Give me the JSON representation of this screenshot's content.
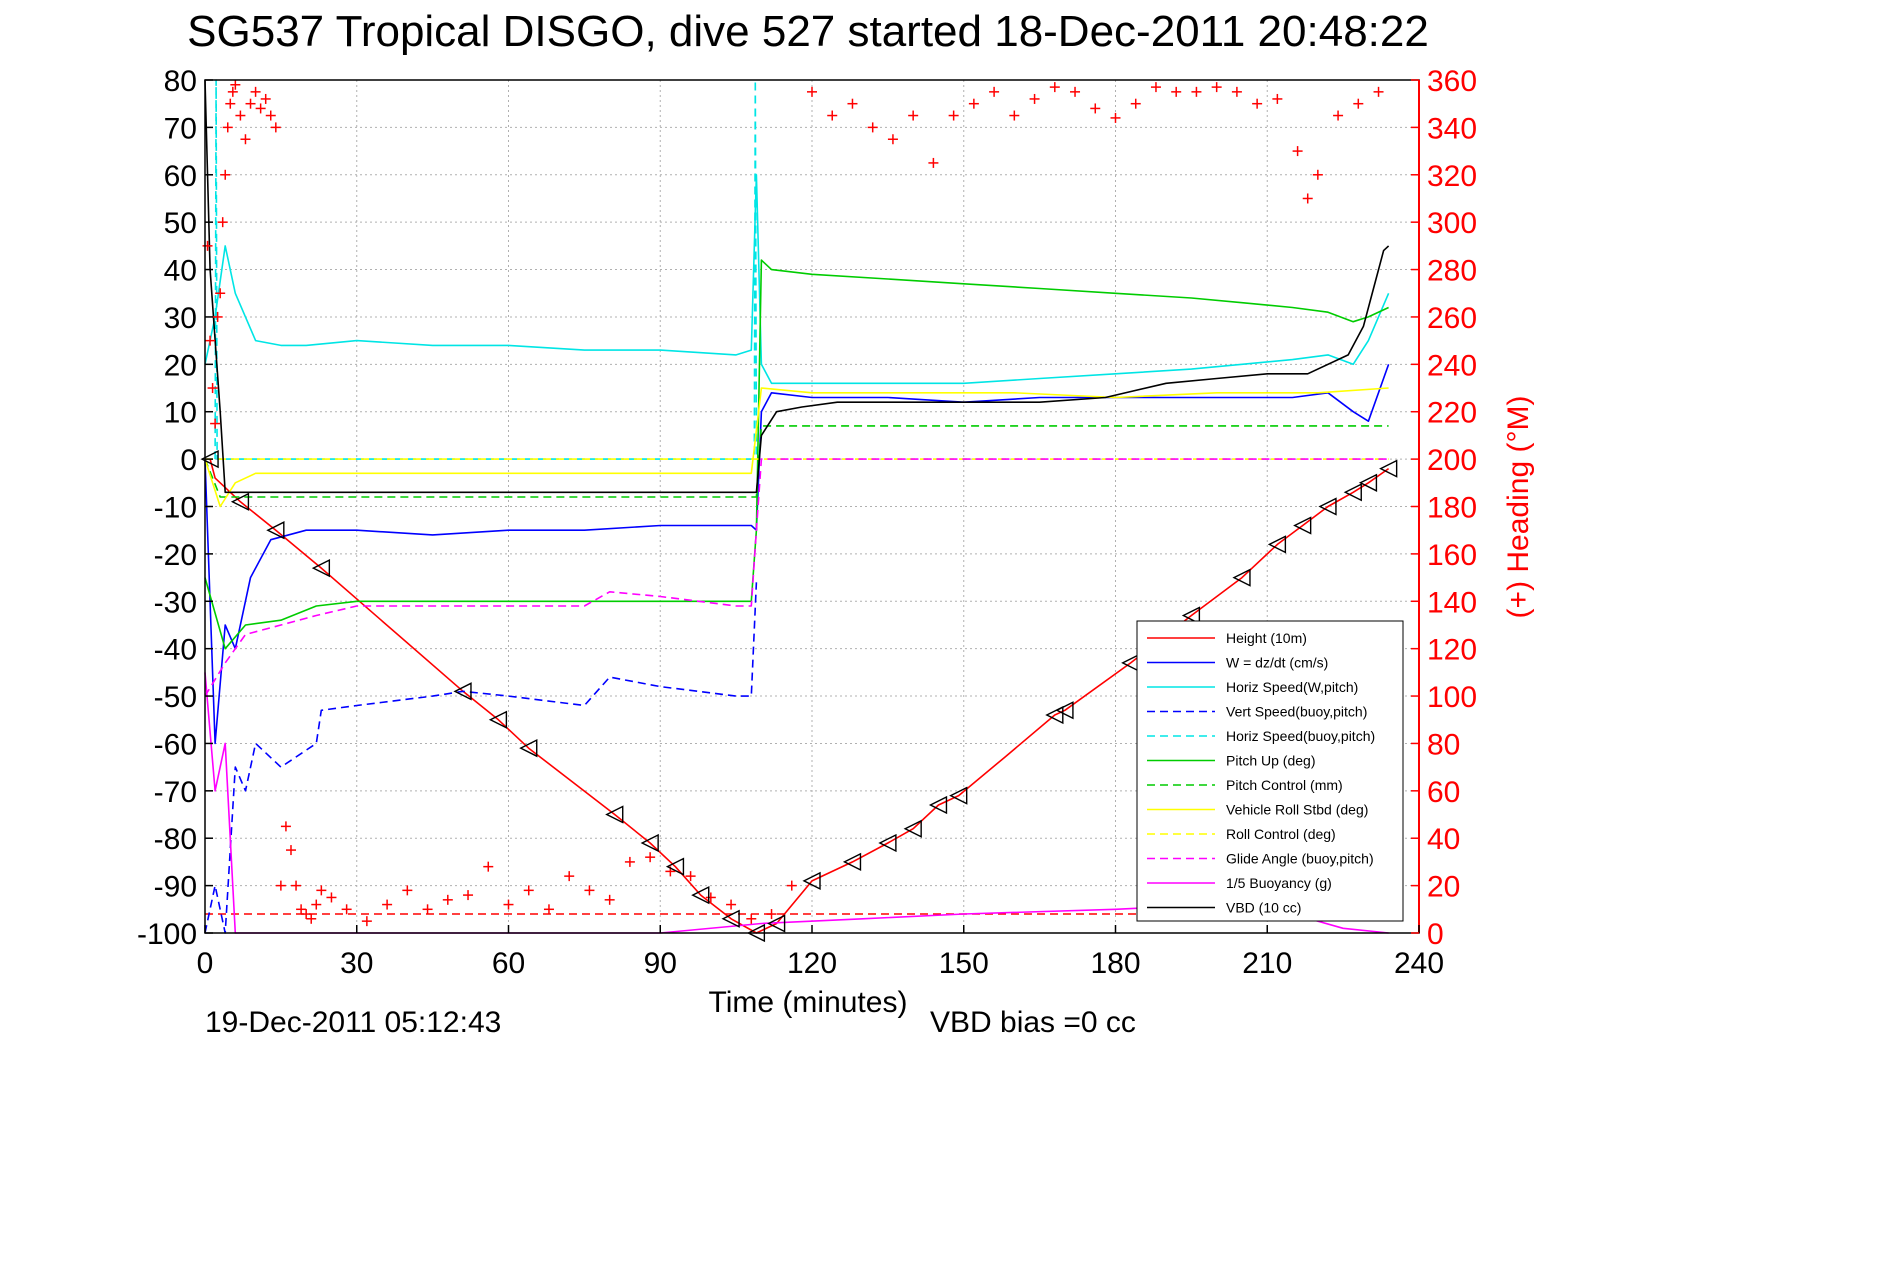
{
  "chart_data": {
    "type": "line",
    "title": "SG537 Tropical DISGO, dive 527 started 18-Dec-2011 20:48:22",
    "xlabel": "Time (minutes)",
    "ylabel": "",
    "y2label": "(+) Heading (°M)",
    "xlim": [
      0,
      240
    ],
    "ylim": [
      -100,
      80
    ],
    "y2lim": [
      0,
      360
    ],
    "xticks": [
      "0",
      "30",
      "60",
      "90",
      "120",
      "150",
      "180",
      "210",
      "240"
    ],
    "yticks": [
      "80",
      "70",
      "60",
      "50",
      "40",
      "30",
      "20",
      "10",
      "0",
      "-10",
      "-20",
      "-30",
      "-40",
      "-50",
      "-60",
      "-70",
      "-80",
      "-90",
      "-100"
    ],
    "y2ticks": [
      "360",
      "340",
      "320",
      "300",
      "280",
      "260",
      "240",
      "220",
      "200",
      "180",
      "160",
      "140",
      "120",
      "100",
      "80",
      "60",
      "40",
      "20",
      "0"
    ],
    "grid": true,
    "legend_position": "lower-right",
    "footer_left": "19-Dec-2011 05:12:43",
    "footer_right": "VBD bias =0 cc",
    "colors": {
      "height": "#ff0000",
      "w": "#0000ff",
      "horiz_speed_w": "#00e5e5",
      "vert_speed_buoy": "#0000ff",
      "horiz_speed_buoy": "#00e5e5",
      "pitch_up": "#00cc00",
      "pitch_control": "#00cc00",
      "roll": "#ffff00",
      "roll_control": "#ffff00",
      "glide": "#ff00ff",
      "buoyancy": "#ff00ff",
      "vbd": "#000000",
      "heading": "#ff0000",
      "right_axis": "#ff0000"
    },
    "series": [
      {
        "name": "Height (10m)",
        "style": "solid",
        "color_key": "height",
        "x": [
          1,
          2,
          7,
          14,
          23,
          51,
          58,
          64,
          81,
          88,
          93,
          98,
          104,
          109,
          113,
          120,
          128,
          135,
          140,
          145,
          149,
          158,
          168,
          170,
          183,
          195,
          205,
          212,
          217,
          222,
          227,
          230,
          234
        ],
        "y": [
          0,
          -4,
          -9,
          -15,
          -23,
          -49,
          -55,
          -61,
          -75,
          -81,
          -86,
          -92,
          -97,
          -100,
          -98,
          -89,
          -85,
          -81,
          -78,
          -73,
          -71,
          -63,
          -54,
          -53,
          -43,
          -33,
          -25,
          -18,
          -14,
          -10,
          -7,
          -5,
          -2
        ]
      },
      {
        "name": "W = dz/dt (cm/s)",
        "style": "solid",
        "color_key": "w",
        "x": [
          0,
          2,
          4,
          6,
          9,
          13,
          20,
          30,
          45,
          60,
          75,
          90,
          105,
          108,
          109,
          110,
          112,
          120,
          135,
          150,
          165,
          180,
          195,
          205,
          215,
          222,
          227,
          230,
          234
        ],
        "y": [
          0,
          -60,
          -35,
          -40,
          -25,
          -17,
          -15,
          -15,
          -16,
          -15,
          -15,
          -14,
          -14,
          -14,
          -15,
          10,
          14,
          13,
          13,
          12,
          13,
          13,
          13,
          13,
          13,
          14,
          10,
          8,
          20
        ]
      },
      {
        "name": "Horiz Speed(W,pitch)",
        "style": "solid",
        "color_key": "horiz_speed_w",
        "x": [
          0,
          2,
          4,
          6,
          10,
          15,
          20,
          30,
          45,
          60,
          75,
          90,
          105,
          108,
          109,
          110,
          112,
          120,
          135,
          150,
          165,
          180,
          195,
          205,
          215,
          222,
          227,
          230,
          234
        ],
        "y": [
          20,
          30,
          45,
          35,
          25,
          24,
          24,
          25,
          24,
          24,
          23,
          23,
          22,
          23,
          60,
          20,
          16,
          16,
          16,
          16,
          17,
          18,
          19,
          20,
          21,
          22,
          20,
          25,
          35
        ]
      },
      {
        "name": "Vert Speed(buoy,pitch)",
        "style": "dashed",
        "color_key": "vert_speed_buoy",
        "x": [
          0,
          2,
          4,
          6,
          8,
          10,
          15,
          22,
          23,
          30,
          45,
          51,
          60,
          75,
          80,
          90,
          105,
          108,
          109
        ],
        "y": [
          -100,
          -90,
          -100,
          -65,
          -70,
          -60,
          -65,
          -60,
          -53,
          -52,
          -50,
          -49,
          -50,
          -52,
          -46,
          -48,
          -50,
          -50,
          -26
        ]
      },
      {
        "name": "Horiz Speed(buoy,pitch)",
        "style": "dashed",
        "color_key": "horiz_speed_buoy",
        "x": [
          2,
          2.2,
          2.4,
          108.6,
          108.8,
          109
        ],
        "y": [
          0,
          80,
          0,
          0,
          80,
          0
        ]
      },
      {
        "name": "Pitch Up (deg)",
        "style": "solid",
        "color_key": "pitch_up",
        "x": [
          0,
          4,
          8,
          15,
          22,
          30,
          45,
          60,
          75,
          90,
          105,
          108,
          109,
          110,
          112,
          120,
          135,
          150,
          165,
          180,
          195,
          205,
          215,
          222,
          227,
          230,
          234
        ],
        "y": [
          -25,
          -40,
          -35,
          -34,
          -31,
          -30,
          -30,
          -30,
          -30,
          -30,
          -30,
          -30,
          -15,
          42,
          40,
          39,
          38,
          37,
          36,
          35,
          34,
          33,
          32,
          31,
          29,
          30,
          32
        ]
      },
      {
        "name": "Pitch Control (mm)",
        "style": "dashed",
        "color_key": "pitch_control",
        "x": [
          0,
          3,
          10,
          20,
          40,
          60,
          80,
          100,
          108,
          109,
          110,
          130,
          160,
          190,
          210,
          230,
          234
        ],
        "y": [
          0,
          -8,
          -8,
          -8,
          -8,
          -8,
          -8,
          -8,
          -8,
          -8,
          7,
          7,
          7,
          7,
          7,
          7,
          7
        ]
      },
      {
        "name": "Vehicle Roll Stbd (deg)",
        "style": "solid",
        "color_key": "roll",
        "x": [
          0,
          3,
          6,
          10,
          20,
          30,
          45,
          60,
          75,
          90,
          105,
          108,
          110,
          120,
          140,
          160,
          180,
          200,
          220,
          234
        ],
        "y": [
          0,
          -10,
          -5,
          -3,
          -3,
          -3,
          -3,
          -3,
          -3,
          -3,
          -3,
          -3,
          15,
          14,
          14,
          14,
          13,
          14,
          14,
          15
        ]
      },
      {
        "name": "Roll Control (deg)",
        "style": "dashed",
        "color_key": "roll_control",
        "x": [
          0,
          3,
          10,
          30,
          60,
          90,
          108,
          110,
          140,
          170,
          200,
          230,
          234
        ],
        "y": [
          0,
          0,
          0,
          0,
          0,
          0,
          0,
          0,
          0,
          0,
          0,
          0,
          0
        ]
      },
      {
        "name": "Glide Angle (buoy,pitch)",
        "style": "dashed",
        "color_key": "glide",
        "x": [
          0,
          4,
          8,
          15,
          22,
          30,
          45,
          60,
          75,
          80,
          90,
          105,
          108,
          109,
          110,
          140,
          170,
          200,
          234
        ],
        "y": [
          -50,
          -43,
          -37,
          -35,
          -33,
          -31,
          -31,
          -31,
          -31,
          -28,
          -29,
          -31,
          -31,
          -15,
          0,
          0,
          0,
          0,
          0
        ]
      },
      {
        "name": "1/5 Buoyancy (g)",
        "style": "solid",
        "color_key": "buoyancy",
        "x": [
          0,
          2,
          4,
          6,
          10,
          30,
          60,
          90,
          110,
          130,
          150,
          180,
          200,
          215,
          225,
          234
        ],
        "y": [
          -45,
          -70,
          -60,
          -100,
          -100,
          -100,
          -100,
          -100,
          -98,
          -97,
          -96,
          -95,
          -94,
          -96,
          -99,
          -100
        ]
      },
      {
        "name": "VBD (10 cc)",
        "style": "solid",
        "color_key": "vbd",
        "x": [
          0,
          1,
          3,
          4,
          30,
          60,
          90,
          108,
          109,
          110,
          113,
          118,
          125,
          140,
          165,
          178,
          190,
          200,
          210,
          218,
          226,
          229,
          231,
          233,
          234
        ],
        "y": [
          80,
          40,
          10,
          -7,
          -7,
          -7,
          -7,
          -7,
          -7,
          5,
          10,
          11,
          12,
          12,
          12,
          13,
          16,
          17,
          18,
          18,
          22,
          28,
          36,
          44,
          45
        ]
      }
    ],
    "heading_series": {
      "name": "Heading",
      "marker": "+",
      "axis": "right",
      "color_key": "heading",
      "x": [
        0.5,
        1,
        1.5,
        2,
        2.5,
        3,
        3.5,
        4,
        4.5,
        5,
        5.5,
        6,
        7,
        8,
        9,
        10,
        11,
        12,
        13,
        14,
        15,
        16,
        17,
        18,
        19,
        20,
        21,
        22,
        23,
        25,
        28,
        32,
        36,
        40,
        44,
        48,
        52,
        56,
        60,
        64,
        68,
        72,
        76,
        80,
        84,
        88,
        92,
        96,
        100,
        104,
        108,
        112,
        116,
        120,
        124,
        128,
        132,
        136,
        140,
        144,
        148,
        152,
        156,
        160,
        164,
        168,
        172,
        176,
        180,
        184,
        188,
        192,
        196,
        200,
        204,
        208,
        212,
        216,
        218,
        220,
        224,
        228,
        232
      ],
      "y": [
        290,
        250,
        230,
        215,
        260,
        270,
        300,
        320,
        340,
        350,
        355,
        358,
        345,
        335,
        350,
        355,
        348,
        352,
        345,
        340,
        20,
        45,
        35,
        20,
        10,
        8,
        6,
        12,
        18,
        15,
        10,
        5,
        12,
        18,
        10,
        14,
        16,
        28,
        12,
        18,
        10,
        24,
        18,
        14,
        30,
        32,
        26,
        24,
        15,
        12,
        6,
        8,
        20,
        355,
        345,
        350,
        340,
        335,
        345,
        325,
        345,
        350,
        355,
        345,
        352,
        357,
        355,
        348,
        344,
        350,
        357,
        355,
        355,
        357,
        355,
        350,
        352,
        330,
        310,
        320,
        345,
        350,
        355
      ],
      "legend": false
    },
    "dashed_reference": {
      "y": -96,
      "color_key": "height"
    },
    "triangle_markers": {
      "x": [
        1,
        7,
        14,
        23,
        51,
        58,
        64,
        81,
        88,
        93,
        98,
        104,
        109,
        113,
        120,
        128,
        135,
        140,
        145,
        149,
        168,
        170,
        183,
        195,
        205,
        212,
        217,
        222,
        227,
        230,
        234
      ],
      "y": [
        0,
        -9,
        -15,
        -23,
        -49,
        -55,
        -61,
        -75,
        -81,
        -86,
        -92,
        -97,
        -100,
        -98,
        -89,
        -85,
        -81,
        -78,
        -73,
        -71,
        -54,
        -53,
        -43,
        -33,
        -25,
        -18,
        -14,
        -10,
        -7,
        -5,
        -2
      ]
    }
  }
}
